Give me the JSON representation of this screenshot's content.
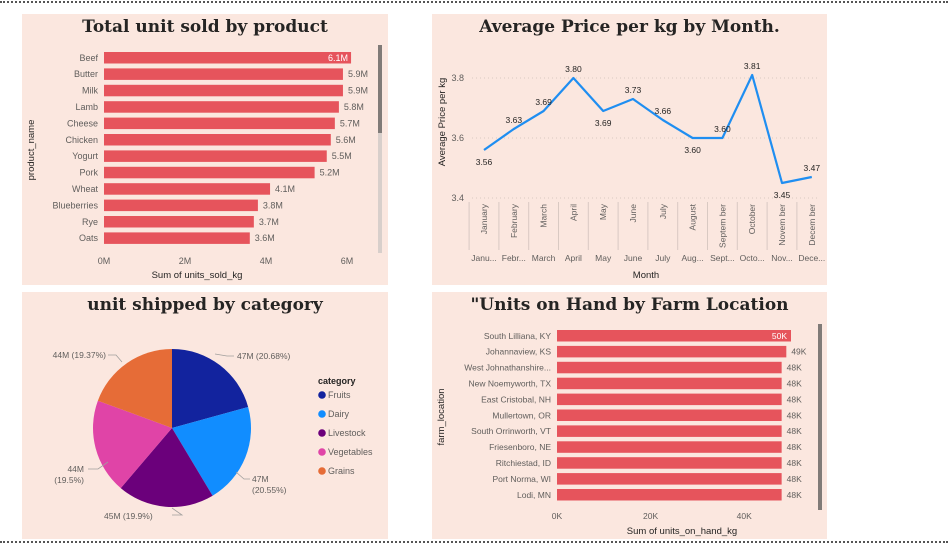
{
  "chart_data": [
    {
      "type": "bar",
      "orientation": "horizontal",
      "title": "Total unit sold by product",
      "xlabel": "Sum of units_sold_kg",
      "ylabel": "product_name",
      "xlim": [
        0,
        6.5
      ],
      "x_ticks": [
        "0M",
        "2M",
        "4M",
        "6M"
      ],
      "color": "#e6545c",
      "categories": [
        "Beef",
        "Butter",
        "Milk",
        "Lamb",
        "Cheese",
        "Chicken",
        "Yogurt",
        "Pork",
        "Wheat",
        "Blueberries",
        "Rye",
        "Oats"
      ],
      "values": [
        6.1,
        5.9,
        5.9,
        5.8,
        5.7,
        5.6,
        5.5,
        5.2,
        4.1,
        3.8,
        3.7,
        3.6
      ],
      "data_labels": [
        "6.1M",
        "5.9M",
        "5.9M",
        "5.8M",
        "5.7M",
        "5.6M",
        "5.5M",
        "5.2M",
        "4.1M",
        "3.8M",
        "3.7M",
        "3.6M"
      ]
    },
    {
      "type": "line",
      "title": "Average Price per kg by Month.",
      "xlabel": "Month",
      "ylabel": "Average Price per kg",
      "ylim": [
        3.4,
        3.9
      ],
      "y_ticks": [
        "3.4",
        "3.6",
        "3.8"
      ],
      "color": "#1f8ef1",
      "categories": [
        "January",
        "February",
        "March",
        "April",
        "May",
        "June",
        "July",
        "August",
        "September",
        "October",
        "November",
        "December"
      ],
      "categories_rotated": [
        "January",
        "February",
        "March",
        "April",
        "May",
        "June",
        "July",
        "August",
        "Septem ber",
        "October",
        "Novem ber",
        "Decem ber"
      ],
      "categories_short": [
        "Janu...",
        "Febr...",
        "March",
        "April",
        "May",
        "June",
        "July",
        "Aug...",
        "Sept...",
        "Octo...",
        "Nov...",
        "Dece..."
      ],
      "values": [
        3.56,
        3.63,
        3.69,
        3.8,
        3.69,
        3.73,
        3.66,
        3.6,
        3.6,
        3.81,
        3.45,
        3.47
      ],
      "data_labels": [
        "3.56",
        "3.63",
        "3.69",
        "3.80",
        "3.69",
        "3.73",
        "3.66",
        "3.60",
        "3.60",
        "3.81",
        "3.45",
        "3.47"
      ]
    },
    {
      "type": "pie",
      "title": "unit shipped by category",
      "legend_title": "category",
      "legend_position": "right",
      "slices": [
        {
          "label": "Fruits",
          "value": 47,
          "color": "#12239e",
          "data_label": "47M (20.68%)"
        },
        {
          "label": "Dairy",
          "value": 47,
          "color": "#118dff",
          "data_label": "47M (20.55%)"
        },
        {
          "label": "Livestock",
          "value": 45,
          "color": "#6b007b",
          "data_label": "45M (19.9%)"
        },
        {
          "label": "Vegetables",
          "value": 44,
          "color": "#e044a7",
          "data_label": "44M (19.5%)"
        },
        {
          "label": "Grains",
          "value": 44,
          "color": "#e66c37",
          "data_label": "44M (19.37%)"
        }
      ]
    },
    {
      "type": "bar",
      "orientation": "horizontal",
      "title": "\"Units on Hand by Farm Location",
      "xlabel": "Sum of units_on_hand_kg",
      "ylabel": "farm_location",
      "xlim": [
        0,
        55
      ],
      "x_ticks": [
        "0K",
        "20K",
        "40K"
      ],
      "color": "#e6545c",
      "categories": [
        "South Lilliana, KY",
        "Johannaview, KS",
        "West Johnathanshire...",
        "New Noemyworth, TX",
        "East Cristobal, NH",
        "Mullertown, OR",
        "South Orrinworth, VT",
        "Friesenboro, NE",
        "Ritchiestad, ID",
        "Port Norma, WI",
        "Lodi, MN"
      ],
      "values": [
        50,
        49,
        48,
        48,
        48,
        48,
        48,
        48,
        48,
        48,
        48
      ],
      "data_labels": [
        "50K",
        "49K",
        "48K",
        "48K",
        "48K",
        "48K",
        "48K",
        "48K",
        "48K",
        "48K",
        "48K"
      ]
    }
  ]
}
